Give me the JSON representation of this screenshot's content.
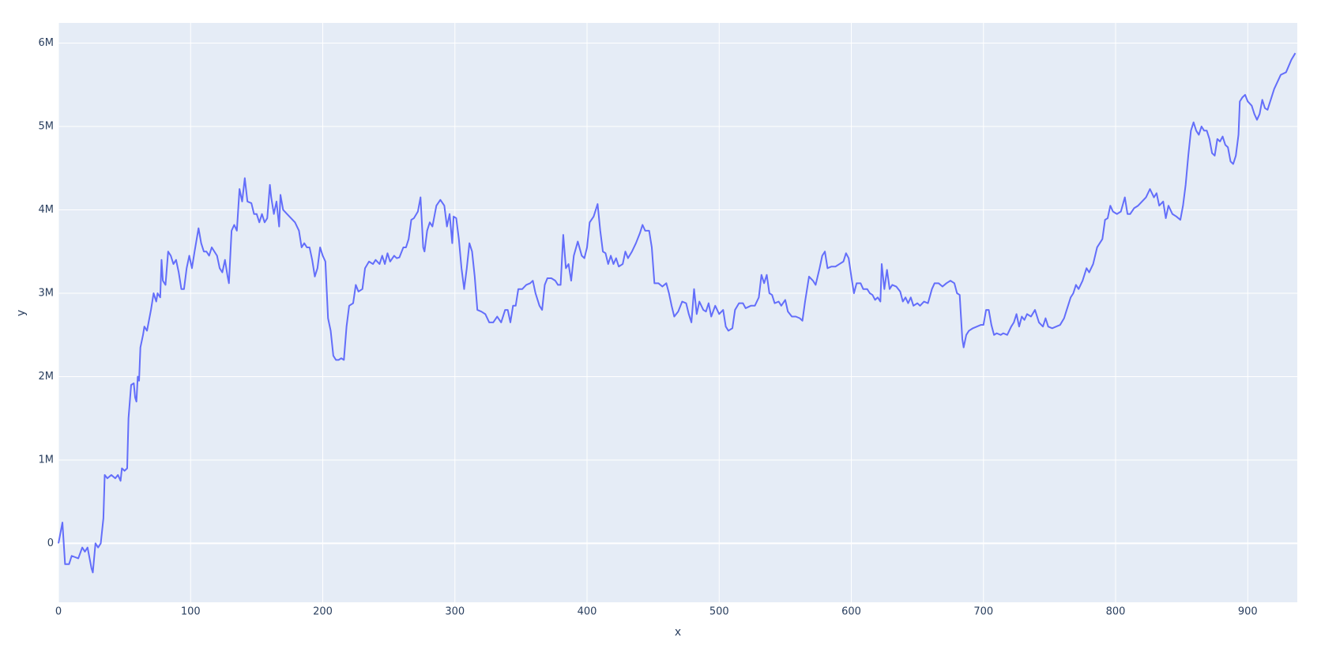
{
  "chart_data": {
    "type": "line",
    "x_label": "x",
    "y_label": "y",
    "xlim": [
      0,
      937.5
    ],
    "ylim": [
      -707000,
      6242000
    ],
    "xticks": [
      0,
      100,
      200,
      300,
      400,
      500,
      600,
      700,
      800,
      900
    ],
    "yticks": [
      0,
      {
        "value": 1000000,
        "label": "1M"
      },
      {
        "value": 2000000,
        "label": "2M"
      },
      {
        "value": 3000000,
        "label": "3M"
      },
      {
        "value": 4000000,
        "label": "4M"
      },
      {
        "value": 5000000,
        "label": "5M"
      },
      {
        "value": 6000000,
        "label": "6M"
      }
    ],
    "grid": true,
    "series": [
      {
        "color": "#636efa",
        "x": [
          0,
          3,
          5,
          8,
          10,
          15,
          18,
          20,
          22,
          25,
          26,
          28,
          30,
          32,
          34,
          35,
          37,
          40,
          43,
          45,
          47,
          48,
          50,
          52,
          53,
          55,
          57,
          58,
          59,
          60,
          61,
          62,
          64,
          65,
          67,
          70,
          72,
          74,
          75,
          77,
          78,
          79,
          81,
          83,
          85,
          87,
          89,
          91,
          93,
          95,
          97,
          99,
          101,
          103,
          106,
          108,
          110,
          112,
          114,
          116,
          118,
          120,
          122,
          124,
          126,
          128,
          129,
          131,
          133,
          135,
          137,
          139,
          141,
          143,
          146,
          148,
          150,
          152,
          154,
          156,
          158,
          160,
          161,
          163,
          165,
          167,
          168,
          170,
          173,
          176,
          179,
          182,
          184,
          186,
          188,
          190,
          192,
          194,
          196,
          198,
          200,
          202,
          204,
          206,
          208,
          210,
          212,
          214,
          216,
          218,
          220,
          223,
          225,
          227,
          230,
          232,
          235,
          238,
          240,
          243,
          245,
          247,
          249,
          251,
          254,
          256,
          258,
          261,
          263,
          265,
          267,
          269,
          272,
          274,
          276,
          277,
          279,
          281,
          283,
          286,
          289,
          292,
          294,
          296,
          298,
          299,
          301,
          303,
          305,
          307,
          309,
          311,
          313,
          315,
          317,
          320,
          323,
          326,
          329,
          332,
          335,
          338,
          340,
          342,
          344,
          346,
          348,
          351,
          354,
          357,
          359,
          361,
          364,
          366,
          368,
          370,
          373,
          376,
          378,
          380,
          382,
          384,
          386,
          388,
          390,
          393,
          396,
          398,
          400,
          402,
          405,
          408,
          410,
          412,
          414,
          416,
          418,
          420,
          422,
          424,
          427,
          429,
          431,
          434,
          437,
          440,
          442,
          444,
          447,
          449,
          451,
          454,
          457,
          460,
          462,
          464,
          466,
          469,
          472,
          475,
          477,
          479,
          481,
          483,
          485,
          488,
          490,
          492,
          494,
          497,
          500,
          503,
          505,
          507,
          510,
          512,
          515,
          518,
          520,
          524,
          527,
          530,
          532,
          534,
          536,
          538,
          540,
          542,
          545,
          547,
          550,
          552,
          555,
          558,
          561,
          563,
          565,
          568,
          571,
          573,
          576,
          578,
          580,
          582,
          585,
          588,
          591,
          594,
          596,
          598,
          600,
          602,
          604,
          607,
          609,
          612,
          614,
          616,
          618,
          620,
          622,
          623,
          625,
          627,
          629,
          631,
          634,
          637,
          639,
          641,
          643,
          645,
          647,
          650,
          652,
          655,
          658,
          661,
          663,
          666,
          669,
          672,
          675,
          678,
          680,
          682,
          684,
          685,
          687,
          689,
          692,
          695,
          698,
          700,
          702,
          704,
          706,
          708,
          710,
          713,
          715,
          718,
          721,
          723,
          725,
          727,
          729,
          731,
          733,
          736,
          739,
          742,
          745,
          747,
          749,
          752,
          755,
          758,
          761,
          763,
          766,
          768,
          770,
          772,
          775,
          778,
          780,
          783,
          786,
          788,
          790,
          792,
          794,
          796,
          798,
          801,
          804,
          807,
          809,
          811,
          814,
          817,
          820,
          823,
          826,
          829,
          831,
          833,
          836,
          838,
          840,
          843,
          846,
          849,
          851,
          853,
          855,
          857,
          859,
          861,
          863,
          865,
          867,
          869,
          871,
          873,
          875,
          877,
          879,
          881,
          883,
          885,
          887,
          889,
          891,
          893,
          894,
          896,
          898,
          900,
          903,
          905,
          907,
          909,
          911,
          913,
          915,
          917,
          920,
          925,
          929,
          933,
          936
        ],
        "values": [
          0,
          250000,
          -250000,
          -250000,
          -150000,
          -180000,
          -50000,
          -100000,
          -50000,
          -300000,
          -350000,
          0,
          -50000,
          0,
          300000,
          820000,
          780000,
          820000,
          780000,
          820000,
          750000,
          900000,
          870000,
          900000,
          1500000,
          1900000,
          1920000,
          1750000,
          1700000,
          2000000,
          1950000,
          2350000,
          2500000,
          2600000,
          2550000,
          2800000,
          3000000,
          2900000,
          3000000,
          2950000,
          3400000,
          3150000,
          3100000,
          3500000,
          3450000,
          3350000,
          3400000,
          3250000,
          3050000,
          3050000,
          3300000,
          3450000,
          3300000,
          3500000,
          3780000,
          3600000,
          3500000,
          3500000,
          3450000,
          3550000,
          3500000,
          3450000,
          3300000,
          3250000,
          3400000,
          3200000,
          3120000,
          3750000,
          3820000,
          3750000,
          4250000,
          4100000,
          4380000,
          4100000,
          4080000,
          3950000,
          3950000,
          3850000,
          3950000,
          3850000,
          3900000,
          4300000,
          4150000,
          3950000,
          4100000,
          3800000,
          4180000,
          4000000,
          3950000,
          3900000,
          3850000,
          3750000,
          3550000,
          3600000,
          3550000,
          3550000,
          3400000,
          3200000,
          3300000,
          3550000,
          3450000,
          3380000,
          2700000,
          2550000,
          2250000,
          2200000,
          2200000,
          2220000,
          2200000,
          2600000,
          2850000,
          2880000,
          3100000,
          3020000,
          3050000,
          3300000,
          3380000,
          3350000,
          3400000,
          3350000,
          3450000,
          3350000,
          3480000,
          3380000,
          3450000,
          3420000,
          3430000,
          3550000,
          3550000,
          3650000,
          3880000,
          3900000,
          3980000,
          4150000,
          3550000,
          3500000,
          3750000,
          3850000,
          3800000,
          4050000,
          4120000,
          4050000,
          3800000,
          3950000,
          3600000,
          3920000,
          3900000,
          3650000,
          3300000,
          3050000,
          3300000,
          3600000,
          3500000,
          3200000,
          2800000,
          2780000,
          2750000,
          2650000,
          2650000,
          2720000,
          2650000,
          2800000,
          2800000,
          2650000,
          2850000,
          2850000,
          3050000,
          3050000,
          3100000,
          3120000,
          3150000,
          3000000,
          2850000,
          2800000,
          3100000,
          3180000,
          3180000,
          3150000,
          3100000,
          3100000,
          3700000,
          3300000,
          3350000,
          3150000,
          3450000,
          3620000,
          3450000,
          3420000,
          3550000,
          3850000,
          3920000,
          4070000,
          3750000,
          3500000,
          3480000,
          3350000,
          3450000,
          3350000,
          3420000,
          3320000,
          3350000,
          3500000,
          3420000,
          3500000,
          3600000,
          3720000,
          3820000,
          3750000,
          3750000,
          3550000,
          3120000,
          3120000,
          3080000,
          3120000,
          3000000,
          2850000,
          2720000,
          2780000,
          2900000,
          2880000,
          2750000,
          2650000,
          3050000,
          2750000,
          2900000,
          2800000,
          2780000,
          2880000,
          2720000,
          2850000,
          2750000,
          2800000,
          2600000,
          2550000,
          2580000,
          2800000,
          2880000,
          2880000,
          2820000,
          2850000,
          2850000,
          2950000,
          3220000,
          3120000,
          3220000,
          3000000,
          2980000,
          2880000,
          2900000,
          2850000,
          2920000,
          2780000,
          2720000,
          2720000,
          2700000,
          2670000,
          2900000,
          3200000,
          3150000,
          3100000,
          3300000,
          3450000,
          3500000,
          3300000,
          3320000,
          3320000,
          3350000,
          3380000,
          3480000,
          3420000,
          3200000,
          3000000,
          3120000,
          3120000,
          3050000,
          3050000,
          3000000,
          2980000,
          2920000,
          2950000,
          2900000,
          3350000,
          3050000,
          3280000,
          3050000,
          3100000,
          3080000,
          3020000,
          2900000,
          2950000,
          2880000,
          2950000,
          2850000,
          2880000,
          2850000,
          2900000,
          2880000,
          3050000,
          3120000,
          3120000,
          3080000,
          3120000,
          3150000,
          3120000,
          3000000,
          2980000,
          2450000,
          2350000,
          2500000,
          2550000,
          2580000,
          2600000,
          2620000,
          2620000,
          2800000,
          2800000,
          2620000,
          2500000,
          2520000,
          2500000,
          2520000,
          2500000,
          2600000,
          2650000,
          2750000,
          2600000,
          2720000,
          2680000,
          2750000,
          2720000,
          2800000,
          2650000,
          2600000,
          2700000,
          2600000,
          2580000,
          2600000,
          2620000,
          2700000,
          2800000,
          2950000,
          3000000,
          3100000,
          3050000,
          3150000,
          3300000,
          3250000,
          3350000,
          3550000,
          3600000,
          3650000,
          3880000,
          3900000,
          4050000,
          3980000,
          3950000,
          3980000,
          4150000,
          3950000,
          3950000,
          4020000,
          4050000,
          4100000,
          4150000,
          4250000,
          4150000,
          4200000,
          4050000,
          4100000,
          3900000,
          4050000,
          3950000,
          3920000,
          3880000,
          4050000,
          4300000,
          4650000,
          4950000,
          5050000,
          4950000,
          4900000,
          5000000,
          4950000,
          4950000,
          4850000,
          4680000,
          4650000,
          4850000,
          4820000,
          4880000,
          4780000,
          4750000,
          4580000,
          4550000,
          4650000,
          4900000,
          5300000,
          5350000,
          5380000,
          5300000,
          5250000,
          5150000,
          5080000,
          5150000,
          5320000,
          5220000,
          5200000,
          5300000,
          5450000,
          5620000,
          5650000,
          5800000,
          5880000
        ]
      }
    ]
  }
}
